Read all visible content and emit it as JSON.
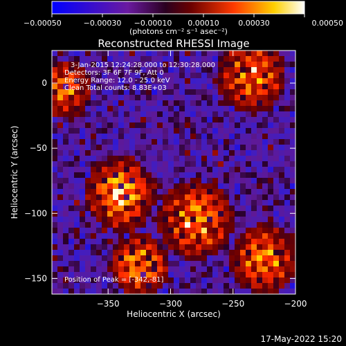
{
  "chart_data": {
    "type": "heatmap",
    "title": "Reconstructed RHESSI Image",
    "xlabel": "Heliocentric X (arcsec)",
    "ylabel": "Heliocentric Y (arcsec)",
    "xlim": [
      -395,
      -200
    ],
    "ylim": [
      -162,
      25
    ],
    "x_ticks": [
      -350,
      -300,
      -250,
      -200
    ],
    "y_ticks": [
      0,
      -50,
      -100,
      -150
    ],
    "x_tick_labels": [
      "−350",
      "−300",
      "−250",
      "−200"
    ],
    "y_tick_labels": [
      "0",
      "−50",
      "−100",
      "−150"
    ],
    "colorbar": {
      "range": [
        -0.0005,
        0.0005
      ],
      "ticks": [
        -0.0005,
        -0.0003,
        -0.0001,
        0.0001,
        0.0003,
        0.0005
      ],
      "tick_labels": [
        "−0.00050",
        "−0.00030",
        "−0.00010",
        "0.00010",
        "0.00030",
        "0.00050"
      ],
      "label": "(photons cm⁻² s⁻¹ asec⁻²)"
    },
    "annotations": [
      "3-Jan-2015 12:24:28.000 to 12:30:28.000",
      "Detectors: 3F 6F 7F 9F, Att 0",
      "Energy Range: 12.0 - 25.0 keV",
      "Clean    Total counts: 8.83E+03"
    ],
    "peak_label": "Position of Peak = [-342,-81]",
    "peak_position": [
      -342,
      -81
    ],
    "sources": [
      {
        "x": -340,
        "y": -85,
        "sigma": 14,
        "amp": 1.0
      },
      {
        "x": -325,
        "y": -140,
        "sigma": 12,
        "amp": 0.9
      },
      {
        "x": -280,
        "y": -105,
        "sigma": 15,
        "amp": 0.95
      },
      {
        "x": -235,
        "y": 5,
        "sigma": 14,
        "amp": 0.85
      },
      {
        "x": -225,
        "y": -135,
        "sigma": 14,
        "amp": 0.8
      },
      {
        "x": -385,
        "y": -5,
        "sigma": 12,
        "amp": 0.7
      }
    ]
  },
  "footer": {
    "timestamp": "17-May-2022 15:20"
  },
  "colors": {
    "background": "#000000",
    "foreground": "#ffffff",
    "colormap": [
      "#0000ff",
      "#5a1a9a",
      "#1a0010",
      "#8a0000",
      "#ff4a00",
      "#ffd000",
      "#ffffff"
    ]
  }
}
